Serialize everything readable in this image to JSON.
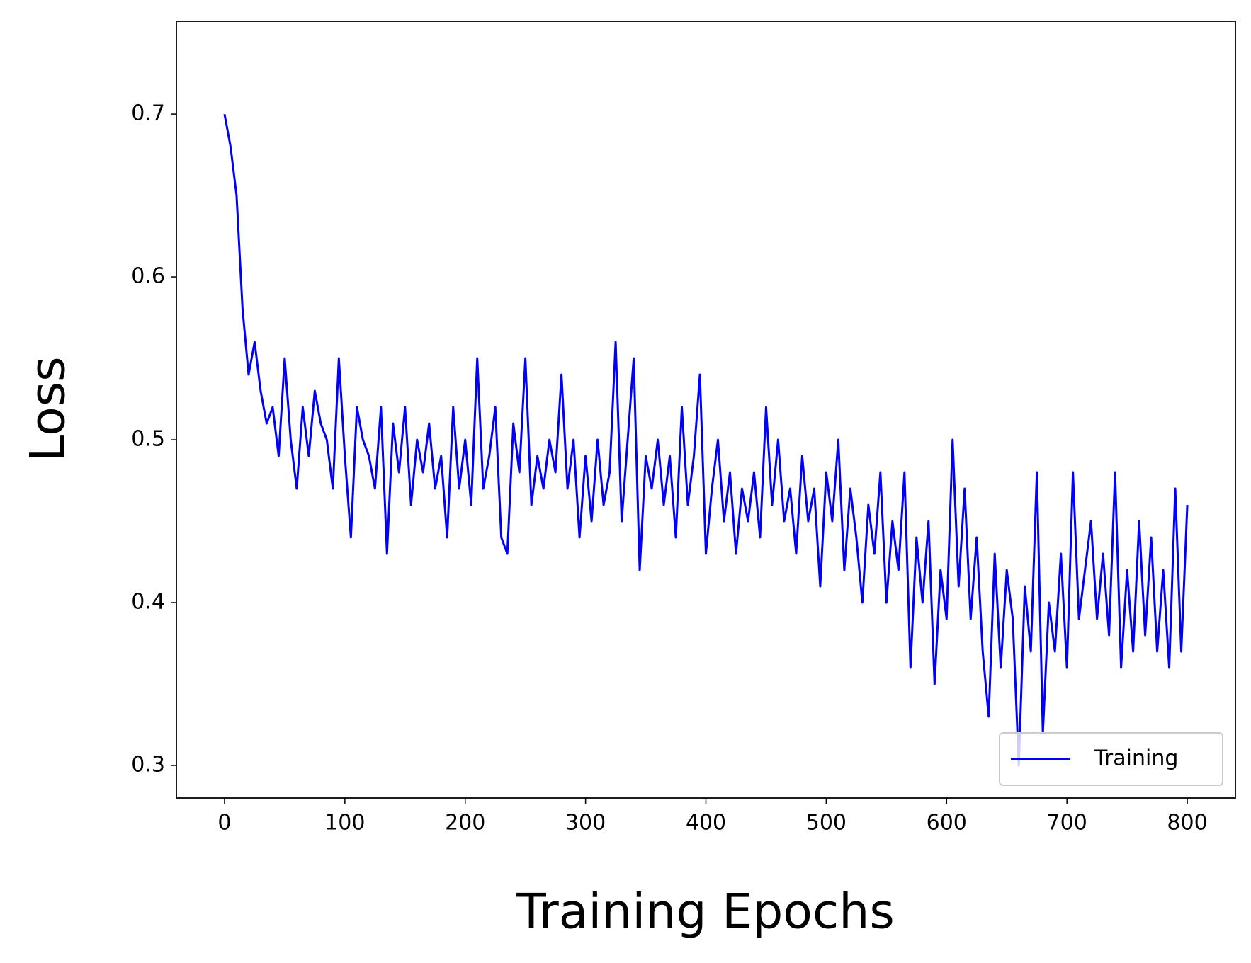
{
  "chart_data": {
    "type": "line",
    "xlabel": "Training Epochs",
    "ylabel": "Loss",
    "x": [
      0,
      5,
      10,
      15,
      20,
      25,
      30,
      35,
      40,
      45,
      50,
      55,
      60,
      65,
      70,
      75,
      80,
      85,
      90,
      95,
      100,
      105,
      110,
      115,
      120,
      125,
      130,
      135,
      140,
      145,
      150,
      155,
      160,
      165,
      170,
      175,
      180,
      185,
      190,
      195,
      200,
      205,
      210,
      215,
      220,
      225,
      230,
      235,
      240,
      245,
      250,
      255,
      260,
      265,
      270,
      275,
      280,
      285,
      290,
      295,
      300,
      305,
      310,
      315,
      320,
      325,
      330,
      335,
      340,
      345,
      350,
      355,
      360,
      365,
      370,
      375,
      380,
      385,
      390,
      395,
      400,
      405,
      410,
      415,
      420,
      425,
      430,
      435,
      440,
      445,
      450,
      455,
      460,
      465,
      470,
      475,
      480,
      485,
      490,
      495,
      500,
      505,
      510,
      515,
      520,
      525,
      530,
      535,
      540,
      545,
      550,
      555,
      560,
      565,
      570,
      575,
      580,
      585,
      590,
      595,
      600,
      605,
      610,
      615,
      620,
      625,
      630,
      635,
      640,
      645,
      650,
      655,
      660,
      665,
      670,
      675,
      680,
      685,
      690,
      695,
      700,
      705,
      710,
      715,
      720,
      725,
      730,
      735,
      740,
      745,
      750,
      755,
      760,
      765,
      770,
      775,
      780,
      785,
      790,
      795,
      800
    ],
    "series": [
      {
        "name": "Training",
        "color": "#0000ff",
        "values": [
          0.7,
          0.68,
          0.65,
          0.58,
          0.54,
          0.56,
          0.53,
          0.51,
          0.52,
          0.49,
          0.55,
          0.5,
          0.47,
          0.52,
          0.49,
          0.53,
          0.51,
          0.5,
          0.47,
          0.55,
          0.49,
          0.44,
          0.52,
          0.5,
          0.49,
          0.47,
          0.52,
          0.43,
          0.51,
          0.48,
          0.52,
          0.46,
          0.5,
          0.48,
          0.51,
          0.47,
          0.49,
          0.44,
          0.52,
          0.47,
          0.5,
          0.46,
          0.55,
          0.47,
          0.49,
          0.52,
          0.44,
          0.43,
          0.51,
          0.48,
          0.55,
          0.46,
          0.49,
          0.47,
          0.5,
          0.48,
          0.54,
          0.47,
          0.5,
          0.44,
          0.49,
          0.45,
          0.5,
          0.46,
          0.48,
          0.56,
          0.45,
          0.5,
          0.55,
          0.42,
          0.49,
          0.47,
          0.5,
          0.46,
          0.49,
          0.44,
          0.52,
          0.46,
          0.49,
          0.54,
          0.43,
          0.47,
          0.5,
          0.45,
          0.48,
          0.43,
          0.47,
          0.45,
          0.48,
          0.44,
          0.52,
          0.46,
          0.5,
          0.45,
          0.47,
          0.43,
          0.49,
          0.45,
          0.47,
          0.41,
          0.48,
          0.45,
          0.5,
          0.42,
          0.47,
          0.44,
          0.4,
          0.46,
          0.43,
          0.48,
          0.4,
          0.45,
          0.42,
          0.48,
          0.36,
          0.44,
          0.4,
          0.45,
          0.35,
          0.42,
          0.39,
          0.5,
          0.41,
          0.47,
          0.39,
          0.44,
          0.37,
          0.33,
          0.43,
          0.36,
          0.42,
          0.39,
          0.3,
          0.41,
          0.37,
          0.48,
          0.32,
          0.4,
          0.37,
          0.43,
          0.36,
          0.48,
          0.39,
          0.42,
          0.45,
          0.39,
          0.43,
          0.38,
          0.48,
          0.36,
          0.42,
          0.37,
          0.45,
          0.38,
          0.44,
          0.37,
          0.42,
          0.36,
          0.47,
          0.37,
          0.46
        ]
      }
    ],
    "xlim": [
      -40,
      840
    ],
    "ylim": [
      0.28,
      0.757
    ],
    "xticks": [
      0,
      100,
      200,
      300,
      400,
      500,
      600,
      700,
      800
    ],
    "yticks": [
      0.3,
      0.4,
      0.5,
      0.6,
      0.7
    ],
    "grid": false,
    "legend": "lower right"
  }
}
